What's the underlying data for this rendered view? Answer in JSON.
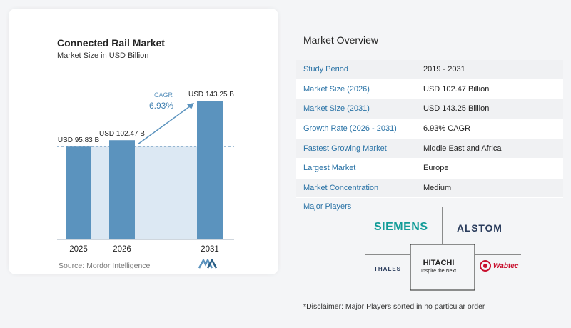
{
  "chart_data": {
    "type": "bar",
    "title": "Connected Rail Market",
    "subtitle": "Market Size in USD Billion",
    "categories": [
      "2025",
      "2026",
      "2031"
    ],
    "values": [
      95.83,
      102.47,
      143.25
    ],
    "data_labels": [
      "USD 95.83 B",
      "USD 102.47 B",
      "USD 143.25 B"
    ],
    "annotation": {
      "label": "CAGR",
      "value": "6.93%"
    },
    "ylim": [
      0,
      143.25
    ],
    "bar_color": "#5b93be",
    "projection_color": "#dce8f3",
    "grid": false
  },
  "source": "Source:  Mordor Intelligence",
  "overview": {
    "title": "Market Overview",
    "rows": [
      {
        "key": "Study Period",
        "value": "2019 - 2031"
      },
      {
        "key": "Market Size (2026)",
        "value": "USD 102.47 Billion"
      },
      {
        "key": "Market Size (2031)",
        "value": "USD 143.25 Billion"
      },
      {
        "key": "Growth Rate (2026 - 2031)",
        "value": "6.93% CAGR"
      },
      {
        "key": "Fastest Growing Market",
        "value": "Middle East and Africa"
      },
      {
        "key": "Largest Market",
        "value": "Europe"
      },
      {
        "key": "Market Concentration",
        "value": "Medium"
      }
    ]
  },
  "players": {
    "title": "Major Players",
    "names": [
      "SIEMENS",
      "ALSTOM",
      "THALES",
      "HITACHI",
      "Inspire the Next",
      "Wabtec"
    ]
  },
  "disclaimer": "*Disclaimer: Major Players sorted in no particular order"
}
